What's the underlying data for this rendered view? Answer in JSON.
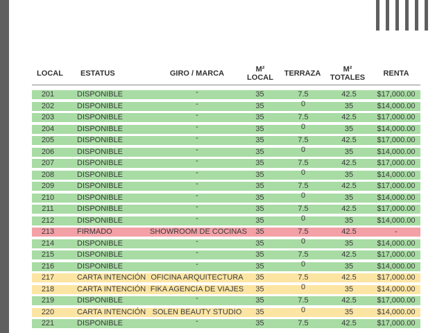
{
  "colors": {
    "disponible": "#a8dca4",
    "firmado": "#f3a0a6",
    "carta": "#fce5a3"
  },
  "columns": {
    "local": "LOCAL",
    "estatus": "ESTATUS",
    "giro": "GIRO / MARCA",
    "m2_line1": "M²",
    "m2_line2": "LOCAL",
    "terraza": "TERRAZA",
    "tot_line1": "M²",
    "tot_line2": "TOTALES",
    "renta": "RENTA"
  },
  "rows": [
    {
      "local": "201",
      "status": "DISPONIBLE",
      "giro": "-",
      "m2": "35",
      "terraza": "7.5",
      "total": "42.5",
      "renta": "$17,000.00",
      "type": "disponible"
    },
    {
      "local": "202",
      "status": "DISPONIBLE",
      "giro": "-",
      "m2": "35",
      "terraza": "0",
      "total": "35",
      "renta": "$14,000.00",
      "type": "disponible"
    },
    {
      "local": "203",
      "status": "DISPONIBLE",
      "giro": "-",
      "m2": "35",
      "terraza": "7.5",
      "total": "42.5",
      "renta": "$17,000.00",
      "type": "disponible"
    },
    {
      "local": "204",
      "status": "DISPONIBLE",
      "giro": "-",
      "m2": "35",
      "terraza": "0",
      "total": "35",
      "renta": "$14,000.00",
      "type": "disponible"
    },
    {
      "local": "205",
      "status": "DISPONIBLE",
      "giro": "-",
      "m2": "35",
      "terraza": "7.5",
      "total": "42.5",
      "renta": "$17,000.00",
      "type": "disponible"
    },
    {
      "local": "206",
      "status": "DISPONIBLE",
      "giro": "-",
      "m2": "35",
      "terraza": "0",
      "total": "35",
      "renta": "$14,000.00",
      "type": "disponible"
    },
    {
      "local": "207",
      "status": "DISPONIBLE",
      "giro": "-",
      "m2": "35",
      "terraza": "7.5",
      "total": "42.5",
      "renta": "$17,000.00",
      "type": "disponible"
    },
    {
      "local": "208",
      "status": "DISPONIBLE",
      "giro": "-",
      "m2": "35",
      "terraza": "0",
      "total": "35",
      "renta": "$14,000.00",
      "type": "disponible"
    },
    {
      "local": "209",
      "status": "DISPONIBLE",
      "giro": "-",
      "m2": "35",
      "terraza": "7.5",
      "total": "42.5",
      "renta": "$17,000.00",
      "type": "disponible"
    },
    {
      "local": "210",
      "status": "DISPONIBLE",
      "giro": "-",
      "m2": "35",
      "terraza": "0",
      "total": "35",
      "renta": "$14,000.00",
      "type": "disponible"
    },
    {
      "local": "211",
      "status": "DISPONIBLE",
      "giro": "-",
      "m2": "35",
      "terraza": "7.5",
      "total": "42.5",
      "renta": "$17,000.00",
      "type": "disponible"
    },
    {
      "local": "212",
      "status": "DISPONIBLE",
      "giro": "-",
      "m2": "35",
      "terraza": "0",
      "total": "35",
      "renta": "$14,000.00",
      "type": "disponible"
    },
    {
      "local": "213",
      "status": "FIRMADO",
      "giro": "SHOWROOM DE COCINAS",
      "m2": "35",
      "terraza": "7.5",
      "total": "42.5",
      "renta": "-",
      "type": "firmado"
    },
    {
      "local": "214",
      "status": "DISPONIBLE",
      "giro": "-",
      "m2": "35",
      "terraza": "0",
      "total": "35",
      "renta": "$14,000.00",
      "type": "disponible"
    },
    {
      "local": "215",
      "status": "DISPONIBLE",
      "giro": "-",
      "m2": "35",
      "terraza": "7.5",
      "total": "42.5",
      "renta": "$17,000.00",
      "type": "disponible"
    },
    {
      "local": "216",
      "status": "DISPONIBLE",
      "giro": "-",
      "m2": "35",
      "terraza": "0",
      "total": "35",
      "renta": "$14,000.00",
      "type": "disponible"
    },
    {
      "local": "217",
      "status": "CARTA INTENCIÓN",
      "giro": "OFICINA ARQUITECTURA",
      "m2": "35",
      "terraza": "7.5",
      "total": "42.5",
      "renta": "$17,000.00",
      "type": "carta"
    },
    {
      "local": "218",
      "status": "CARTA INTENCIÓN",
      "giro": "FIKA AGENCIA DE VIAJES",
      "m2": "35",
      "terraza": "0",
      "total": "35",
      "renta": "$14,000.00",
      "type": "carta"
    },
    {
      "local": "219",
      "status": "DISPONIBLE",
      "giro": "-",
      "m2": "35",
      "terraza": "7.5",
      "total": "42.5",
      "renta": "$17,000.00",
      "type": "disponible"
    },
    {
      "local": "220",
      "status": "CARTA INTENCIÓN",
      "giro": "SOLEN BEAUTY STUDIO",
      "m2": "35",
      "terraza": "0",
      "total": "35",
      "renta": "$14,000.00",
      "type": "carta"
    },
    {
      "local": "221",
      "status": "DISPONIBLE",
      "giro": "-",
      "m2": "35",
      "terraza": "7.5",
      "total": "42.5",
      "renta": "$17,000.00",
      "type": "disponible"
    }
  ]
}
